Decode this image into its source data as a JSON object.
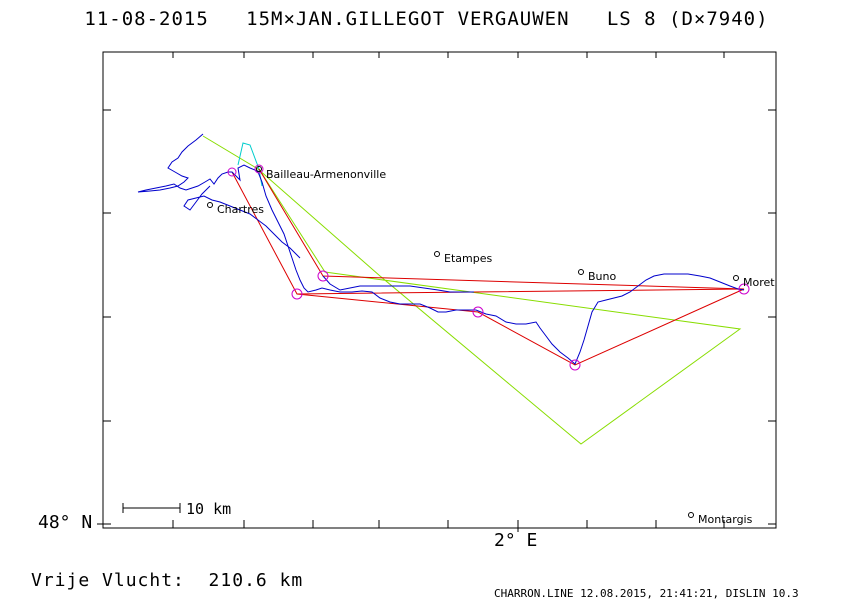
{
  "header": {
    "title": "11-08-2015   15M×JAN.GILLEGOT VERGAUWEN   LS 8 (D×7940)"
  },
  "axes": {
    "lat_label": "48° N",
    "lon_label": "2° E"
  },
  "scale_bar": {
    "label": "10 km"
  },
  "towns": [
    {
      "id": "bailleau",
      "name": "Bailleau-Armenonville"
    },
    {
      "id": "chartres",
      "name": "Chartres"
    },
    {
      "id": "etampes",
      "name": "Etampes"
    },
    {
      "id": "buno",
      "name": "Buno"
    },
    {
      "id": "moret",
      "name": "Moret"
    },
    {
      "id": "montargis",
      "name": "Montargis"
    }
  ],
  "footer": {
    "distance": "Vrije Vlucht:  210.6 km",
    "software": "CHARRON.LINE 12.08.2015, 21:41:21, DISLIN 10.3"
  },
  "colors": {
    "track": "#0000cc",
    "optimized_route": "#dd0000",
    "declared_route": "#88dd00",
    "start_segment": "#00cccc",
    "turnpoint": "#cc00cc"
  }
}
